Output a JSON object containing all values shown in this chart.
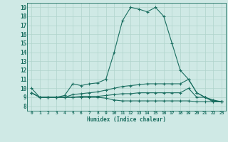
{
  "background_color": "#cfe9e5",
  "grid_color": "#b0d4cc",
  "line_color": "#1a6e60",
  "xlabel": "Humidex (Indice chaleur)",
  "xlim": [
    -0.5,
    23.5
  ],
  "ylim": [
    7.5,
    19.5
  ],
  "yticks": [
    8,
    9,
    10,
    11,
    12,
    13,
    14,
    15,
    16,
    17,
    18,
    19
  ],
  "xticks": [
    0,
    1,
    2,
    3,
    4,
    5,
    6,
    7,
    8,
    9,
    10,
    11,
    12,
    13,
    14,
    15,
    16,
    17,
    18,
    19,
    20,
    21,
    22,
    23
  ],
  "series": [
    {
      "x": [
        0,
        1,
        2,
        3,
        4,
        5,
        6,
        7,
        8,
        9,
        10,
        11,
        12,
        13,
        14,
        15,
        16,
        17,
        18,
        19,
        20,
        21,
        22,
        23
      ],
      "y": [
        10.0,
        9.0,
        9.0,
        9.0,
        9.2,
        10.5,
        10.3,
        10.5,
        10.6,
        11.0,
        14.0,
        17.5,
        19.0,
        18.8,
        18.5,
        19.0,
        18.0,
        15.0,
        12.0,
        11.0,
        9.5,
        9.0,
        8.5,
        8.5
      ]
    },
    {
      "x": [
        0,
        1,
        2,
        3,
        4,
        5,
        6,
        7,
        8,
        9,
        10,
        11,
        12,
        13,
        14,
        15,
        16,
        17,
        18,
        19,
        20,
        21,
        22,
        23
      ],
      "y": [
        9.5,
        9.0,
        9.0,
        9.0,
        9.0,
        9.3,
        9.4,
        9.5,
        9.6,
        9.8,
        10.0,
        10.2,
        10.3,
        10.4,
        10.5,
        10.5,
        10.5,
        10.5,
        10.5,
        11.0,
        9.5,
        9.0,
        8.7,
        8.5
      ]
    },
    {
      "x": [
        0,
        1,
        2,
        3,
        4,
        5,
        6,
        7,
        8,
        9,
        10,
        11,
        12,
        13,
        14,
        15,
        16,
        17,
        18,
        19,
        20,
        21,
        22,
        23
      ],
      "y": [
        9.5,
        9.0,
        9.0,
        9.0,
        9.0,
        9.0,
        9.1,
        9.1,
        9.1,
        9.2,
        9.3,
        9.4,
        9.4,
        9.5,
        9.5,
        9.5,
        9.5,
        9.5,
        9.5,
        10.0,
        9.0,
        9.0,
        8.6,
        8.5
      ]
    },
    {
      "x": [
        0,
        1,
        2,
        3,
        4,
        5,
        6,
        7,
        8,
        9,
        10,
        11,
        12,
        13,
        14,
        15,
        16,
        17,
        18,
        19,
        20,
        21,
        22,
        23
      ],
      "y": [
        9.5,
        9.0,
        9.0,
        9.0,
        9.0,
        9.0,
        9.0,
        9.0,
        9.0,
        8.9,
        8.7,
        8.6,
        8.6,
        8.6,
        8.6,
        8.6,
        8.6,
        8.6,
        8.6,
        8.6,
        8.5,
        8.5,
        8.5,
        8.5
      ]
    }
  ]
}
